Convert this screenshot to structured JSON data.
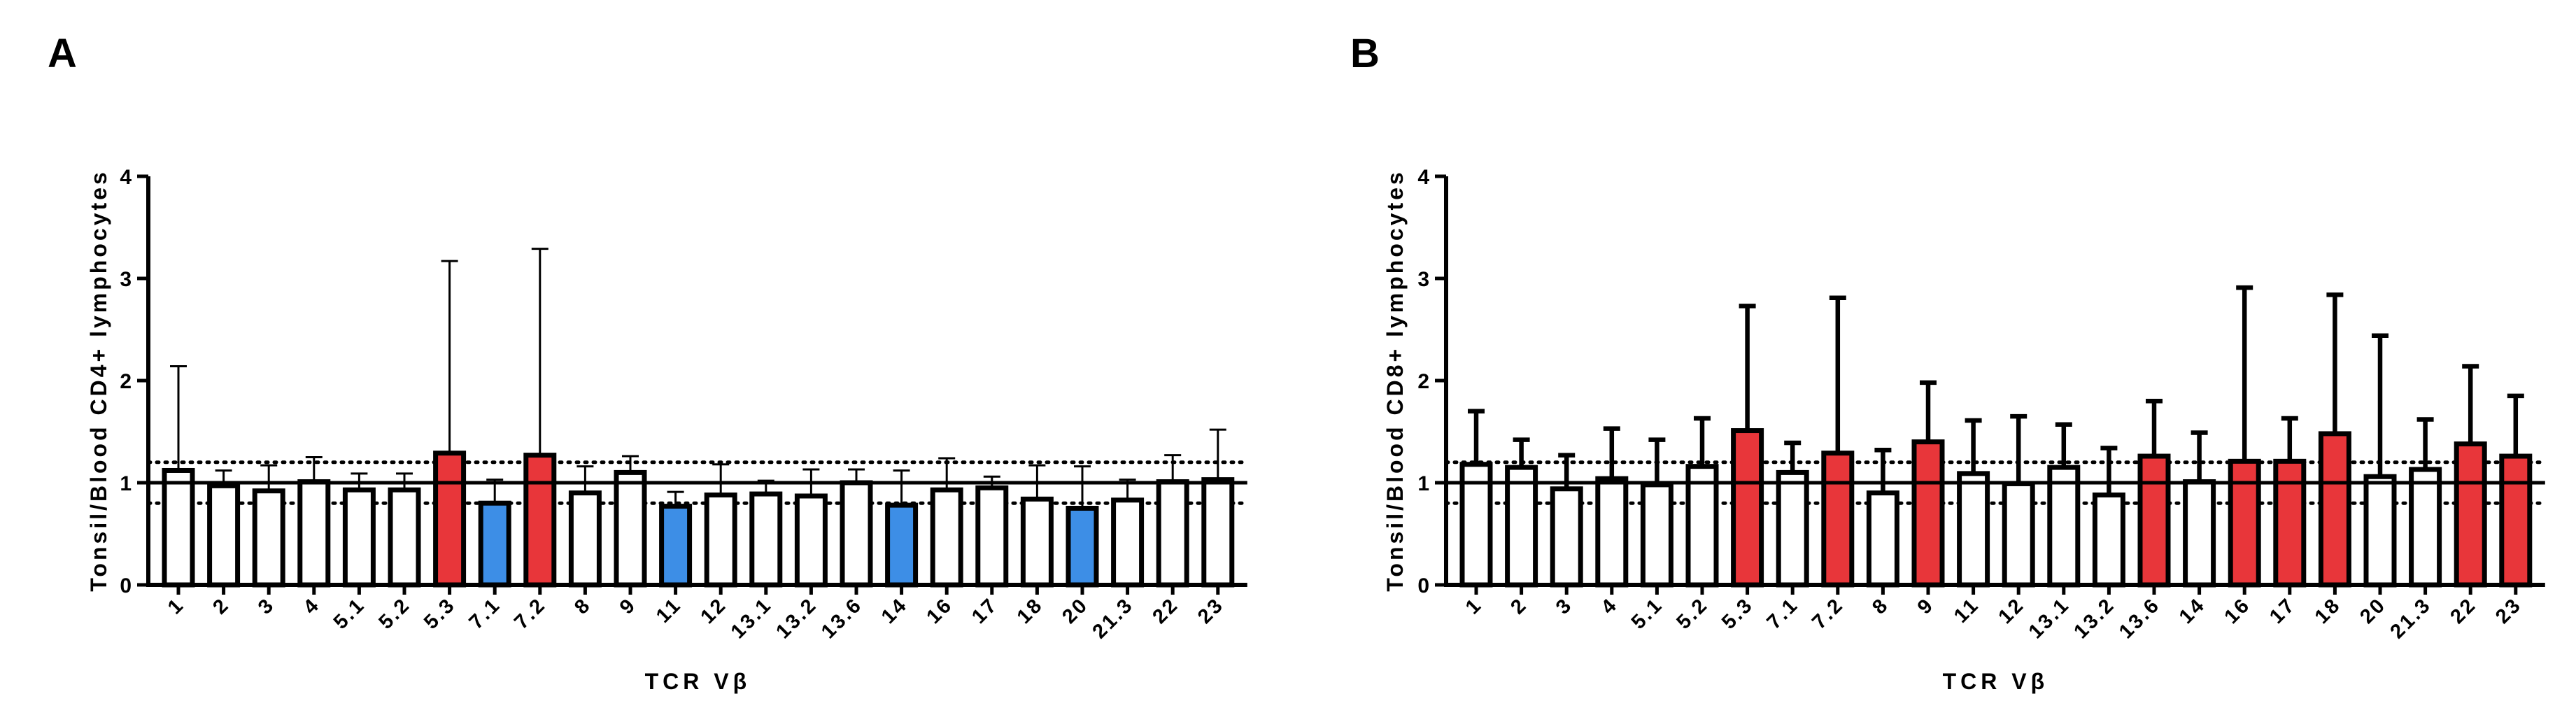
{
  "chart_data": [
    {
      "panel": "A",
      "type": "bar",
      "ylabel": "Tonsil/Blood CD4+ lymphocytes",
      "xlabel": "TCR Vβ",
      "ylim": [
        0,
        4
      ],
      "yticks": [
        0,
        1,
        2,
        3,
        4
      ],
      "reference_lines": {
        "solid": 1.0,
        "dotted": [
          0.8,
          1.2
        ]
      },
      "categories": [
        "1",
        "2",
        "3",
        "4",
        "5.1",
        "5.2",
        "5.3",
        "7.1",
        "7.2",
        "8",
        "9",
        "11",
        "12",
        "13.1",
        "13.2",
        "13.6",
        "14",
        "16",
        "17",
        "18",
        "20",
        "21.3",
        "22",
        "23"
      ],
      "values": [
        1.12,
        0.97,
        0.92,
        1.01,
        0.93,
        0.93,
        1.29,
        0.8,
        1.27,
        0.9,
        1.1,
        0.77,
        0.88,
        0.89,
        0.87,
        1.0,
        0.78,
        0.93,
        0.95,
        0.84,
        0.75,
        0.83,
        1.01,
        1.03
      ],
      "errors": [
        1.02,
        0.15,
        0.25,
        0.24,
        0.16,
        0.16,
        1.88,
        0.23,
        2.02,
        0.26,
        0.16,
        0.14,
        0.3,
        0.13,
        0.26,
        0.13,
        0.34,
        0.31,
        0.11,
        0.33,
        0.41,
        0.2,
        0.26,
        0.49
      ],
      "colors": [
        "w",
        "w",
        "w",
        "w",
        "w",
        "w",
        "r",
        "b",
        "r",
        "w",
        "w",
        "b",
        "w",
        "w",
        "w",
        "w",
        "b",
        "w",
        "w",
        "w",
        "b",
        "w",
        "w",
        "w"
      ],
      "error_style": "thin"
    },
    {
      "panel": "B",
      "type": "bar",
      "ylabel": "Tonsil/Blood CD8+ lymphocytes",
      "xlabel": "TCR Vβ",
      "ylim": [
        0,
        4
      ],
      "yticks": [
        0,
        1,
        2,
        3,
        4
      ],
      "reference_lines": {
        "solid": 1.0,
        "dotted": [
          0.8,
          1.2
        ]
      },
      "categories": [
        "1",
        "2",
        "3",
        "4",
        "5.1",
        "5.2",
        "5.3",
        "7.1",
        "7.2",
        "8",
        "9",
        "11",
        "12",
        "13.1",
        "13.2",
        "13.6",
        "14",
        "16",
        "17",
        "18",
        "20",
        "21.3",
        "22",
        "23"
      ],
      "values": [
        1.18,
        1.15,
        0.94,
        1.04,
        0.98,
        1.16,
        1.51,
        1.1,
        1.29,
        0.9,
        1.4,
        1.09,
        0.99,
        1.15,
        0.88,
        1.26,
        1.01,
        1.21,
        1.21,
        1.48,
        1.06,
        1.13,
        1.38,
        1.26
      ],
      "errors": [
        0.52,
        0.27,
        0.33,
        0.49,
        0.44,
        0.47,
        1.22,
        0.29,
        1.52,
        0.42,
        0.58,
        0.52,
        0.66,
        0.42,
        0.46,
        0.54,
        0.48,
        1.7,
        0.42,
        1.36,
        1.38,
        0.49,
        0.76,
        0.59
      ],
      "colors": [
        "w",
        "w",
        "w",
        "w",
        "w",
        "w",
        "r",
        "w",
        "r",
        "w",
        "r",
        "w",
        "w",
        "w",
        "w",
        "r",
        "w",
        "r",
        "r",
        "r",
        "w",
        "w",
        "r",
        "r"
      ],
      "error_style": "thick"
    }
  ]
}
